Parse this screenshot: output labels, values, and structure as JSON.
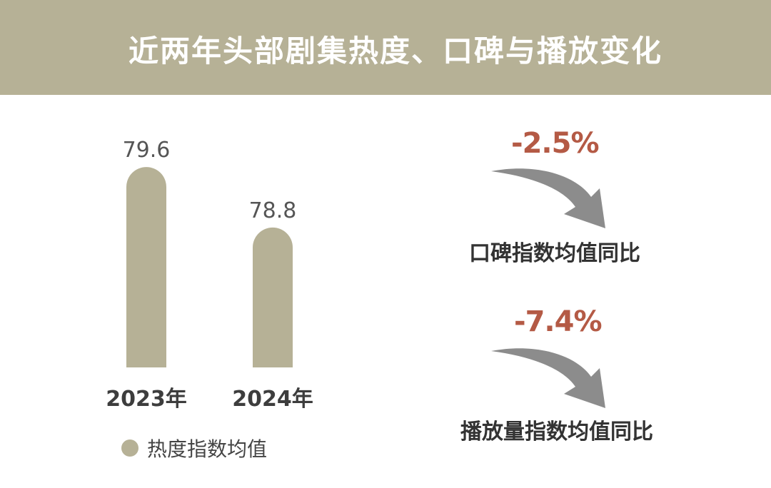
{
  "header": {
    "title": "近两年头部剧集热度、口碑与播放变化"
  },
  "chart_data": {
    "type": "bar",
    "categories": [
      "2023年",
      "2024年"
    ],
    "values": [
      79.6,
      78.8
    ],
    "legend": "热度指数均值",
    "bar_color": "#b6b196"
  },
  "metrics": [
    {
      "change": "-2.5%",
      "label": "口碑指数均值同比",
      "icon": "curved-down-arrow-icon"
    },
    {
      "change": "-7.4%",
      "label": "播放量指数均值同比",
      "icon": "curved-down-arrow-icon"
    }
  ],
  "colors": {
    "header_bg": "#b6b196",
    "change_text": "#b45a45",
    "arrow": "#8c8c8c"
  }
}
